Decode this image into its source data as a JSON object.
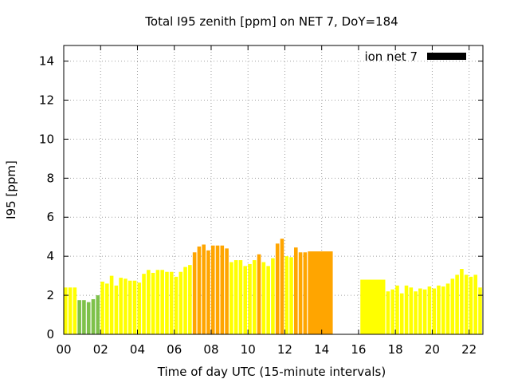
{
  "chart_data": {
    "type": "bar",
    "title": "Total I95 zenith [ppm] on NET 7, DoY=184",
    "xlabel": "Time of day UTC (15-minute intervals)",
    "ylabel": "I95 [ppm]",
    "xlim": [
      0,
      22.75
    ],
    "ylim": [
      0,
      14.8
    ],
    "xticks": [
      "00",
      "02",
      "04",
      "06",
      "08",
      "10",
      "12",
      "14",
      "16",
      "18",
      "20",
      "22"
    ],
    "yticks": [
      "0",
      "2",
      "4",
      "6",
      "8",
      "10",
      "12",
      "14"
    ],
    "grid": true,
    "legend": {
      "position": "top-right",
      "label": "ion net 7",
      "color": "#000000"
    },
    "colors": {
      "green": "#7ec14a",
      "yellow": "#ffff00",
      "orange": "#ffa500"
    },
    "bar_width_hours": 0.25,
    "bars": [
      {
        "x": 0.0,
        "value": 2.4,
        "color": "yellow"
      },
      {
        "x": 0.25,
        "value": 2.4,
        "color": "yellow"
      },
      {
        "x": 0.5,
        "value": 2.4,
        "color": "yellow"
      },
      {
        "x": 0.75,
        "value": 1.75,
        "color": "green"
      },
      {
        "x": 1.0,
        "value": 1.75,
        "color": "green"
      },
      {
        "x": 1.25,
        "value": 1.65,
        "color": "green"
      },
      {
        "x": 1.5,
        "value": 1.8,
        "color": "green"
      },
      {
        "x": 1.75,
        "value": 2.0,
        "color": "green"
      },
      {
        "x": 2.0,
        "value": 2.7,
        "color": "yellow"
      },
      {
        "x": 2.25,
        "value": 2.6,
        "color": "yellow"
      },
      {
        "x": 2.5,
        "value": 3.0,
        "color": "yellow"
      },
      {
        "x": 2.75,
        "value": 2.5,
        "color": "yellow"
      },
      {
        "x": 3.0,
        "value": 2.9,
        "color": "yellow"
      },
      {
        "x": 3.25,
        "value": 2.85,
        "color": "yellow"
      },
      {
        "x": 3.5,
        "value": 2.75,
        "color": "yellow"
      },
      {
        "x": 3.75,
        "value": 2.75,
        "color": "yellow"
      },
      {
        "x": 4.0,
        "value": 2.65,
        "color": "yellow"
      },
      {
        "x": 4.25,
        "value": 3.1,
        "color": "yellow"
      },
      {
        "x": 4.5,
        "value": 3.3,
        "color": "yellow"
      },
      {
        "x": 4.75,
        "value": 3.15,
        "color": "yellow"
      },
      {
        "x": 5.0,
        "value": 3.3,
        "color": "yellow"
      },
      {
        "x": 5.25,
        "value": 3.3,
        "color": "yellow"
      },
      {
        "x": 5.5,
        "value": 3.2,
        "color": "yellow"
      },
      {
        "x": 5.75,
        "value": 3.2,
        "color": "yellow"
      },
      {
        "x": 6.0,
        "value": 2.95,
        "color": "yellow"
      },
      {
        "x": 6.25,
        "value": 3.2,
        "color": "yellow"
      },
      {
        "x": 6.5,
        "value": 3.45,
        "color": "yellow"
      },
      {
        "x": 6.75,
        "value": 3.55,
        "color": "yellow"
      },
      {
        "x": 7.0,
        "value": 4.2,
        "color": "orange"
      },
      {
        "x": 7.25,
        "value": 4.5,
        "color": "orange"
      },
      {
        "x": 7.5,
        "value": 4.6,
        "color": "orange"
      },
      {
        "x": 7.75,
        "value": 4.3,
        "color": "orange"
      },
      {
        "x": 8.0,
        "value": 4.55,
        "color": "orange"
      },
      {
        "x": 8.25,
        "value": 4.55,
        "color": "orange"
      },
      {
        "x": 8.5,
        "value": 4.55,
        "color": "orange"
      },
      {
        "x": 8.75,
        "value": 4.4,
        "color": "orange"
      },
      {
        "x": 9.0,
        "value": 3.7,
        "color": "yellow"
      },
      {
        "x": 9.25,
        "value": 3.8,
        "color": "yellow"
      },
      {
        "x": 9.5,
        "value": 3.8,
        "color": "yellow"
      },
      {
        "x": 9.75,
        "value": 3.5,
        "color": "yellow"
      },
      {
        "x": 10.0,
        "value": 3.6,
        "color": "yellow"
      },
      {
        "x": 10.25,
        "value": 3.8,
        "color": "yellow"
      },
      {
        "x": 10.5,
        "value": 4.1,
        "color": "orange"
      },
      {
        "x": 10.75,
        "value": 3.7,
        "color": "yellow"
      },
      {
        "x": 11.0,
        "value": 3.5,
        "color": "yellow"
      },
      {
        "x": 11.25,
        "value": 3.9,
        "color": "yellow"
      },
      {
        "x": 11.5,
        "value": 4.65,
        "color": "orange"
      },
      {
        "x": 11.75,
        "value": 4.9,
        "color": "orange"
      },
      {
        "x": 12.0,
        "value": 4.0,
        "color": "yellow"
      },
      {
        "x": 12.25,
        "value": 3.95,
        "color": "yellow"
      },
      {
        "x": 12.5,
        "value": 4.45,
        "color": "orange"
      },
      {
        "x": 12.75,
        "value": 4.2,
        "color": "orange"
      },
      {
        "x": 13.0,
        "value": 4.2,
        "color": "orange"
      },
      {
        "x": 13.25,
        "value": 4.25,
        "color": "orange",
        "width_hours": 1.35
      },
      {
        "x": 16.1,
        "value": 2.8,
        "color": "yellow",
        "width_hours": 1.35
      },
      {
        "x": 17.5,
        "value": 2.2,
        "color": "yellow"
      },
      {
        "x": 17.75,
        "value": 2.3,
        "color": "yellow"
      },
      {
        "x": 18.0,
        "value": 2.5,
        "color": "yellow"
      },
      {
        "x": 18.25,
        "value": 2.1,
        "color": "yellow"
      },
      {
        "x": 18.5,
        "value": 2.5,
        "color": "yellow"
      },
      {
        "x": 18.75,
        "value": 2.4,
        "color": "yellow"
      },
      {
        "x": 19.0,
        "value": 2.2,
        "color": "yellow"
      },
      {
        "x": 19.25,
        "value": 2.35,
        "color": "yellow"
      },
      {
        "x": 19.5,
        "value": 2.3,
        "color": "yellow"
      },
      {
        "x": 19.75,
        "value": 2.45,
        "color": "yellow"
      },
      {
        "x": 20.0,
        "value": 2.35,
        "color": "yellow"
      },
      {
        "x": 20.25,
        "value": 2.5,
        "color": "yellow"
      },
      {
        "x": 20.5,
        "value": 2.45,
        "color": "yellow"
      },
      {
        "x": 20.75,
        "value": 2.6,
        "color": "yellow"
      },
      {
        "x": 21.0,
        "value": 2.85,
        "color": "yellow"
      },
      {
        "x": 21.25,
        "value": 3.05,
        "color": "yellow"
      },
      {
        "x": 21.5,
        "value": 3.35,
        "color": "yellow"
      },
      {
        "x": 21.75,
        "value": 3.05,
        "color": "yellow"
      },
      {
        "x": 22.0,
        "value": 2.95,
        "color": "yellow"
      },
      {
        "x": 22.25,
        "value": 3.05,
        "color": "yellow"
      },
      {
        "x": 22.5,
        "value": 2.4,
        "color": "yellow"
      }
    ]
  }
}
